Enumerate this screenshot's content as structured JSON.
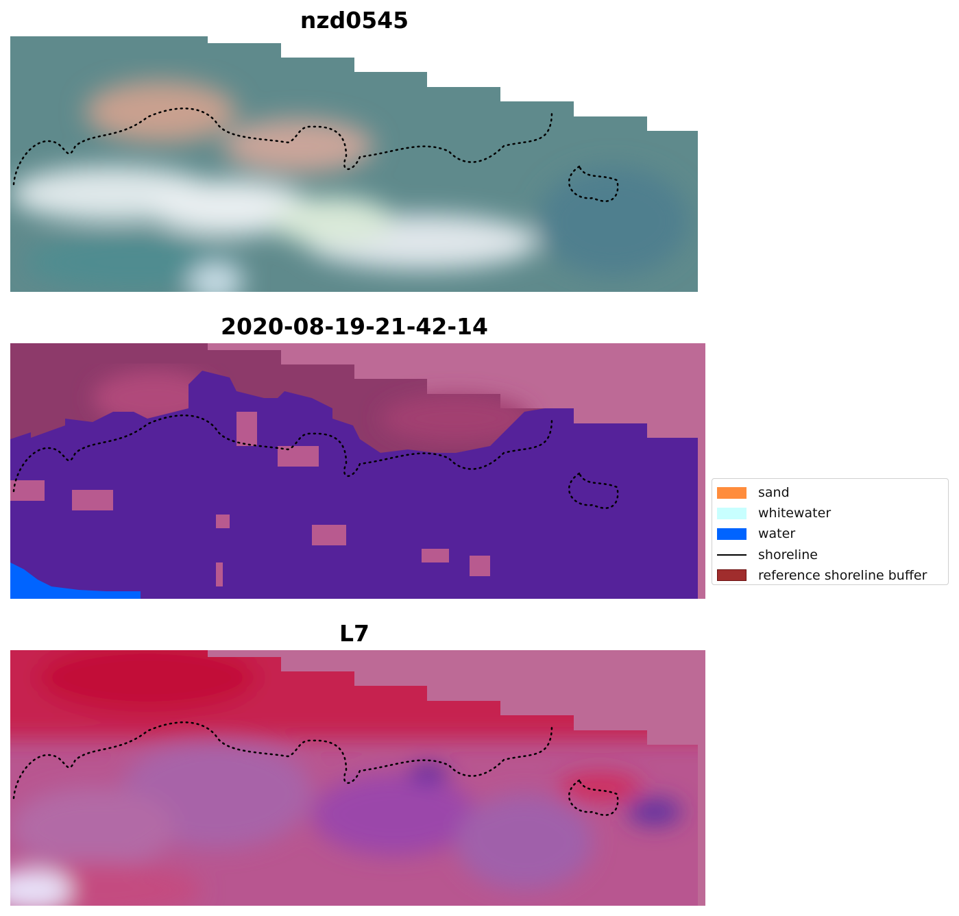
{
  "panels": [
    {
      "title": "nzd0545",
      "kind": "rgb"
    },
    {
      "title": "2020-08-19-21-42-14",
      "kind": "classified"
    },
    {
      "title": "L7",
      "kind": "index"
    }
  ],
  "legend": {
    "items": [
      {
        "label": "sand",
        "color": "#ff8c3c",
        "kind": "patch"
      },
      {
        "label": "whitewater",
        "color": "#c8ffff",
        "kind": "patch"
      },
      {
        "label": "water",
        "color": "#0064ff",
        "kind": "patch"
      },
      {
        "label": "shoreline",
        "color": "#000000",
        "kind": "line"
      },
      {
        "label": "reference shoreline buffer",
        "color": "#a02d2d",
        "kind": "patch"
      }
    ]
  },
  "colors": {
    "no_data": "#bd6a96",
    "buffer_tint": "#8d3a6a",
    "water_class": "#55229a",
    "water_legend": "#0064ff"
  }
}
